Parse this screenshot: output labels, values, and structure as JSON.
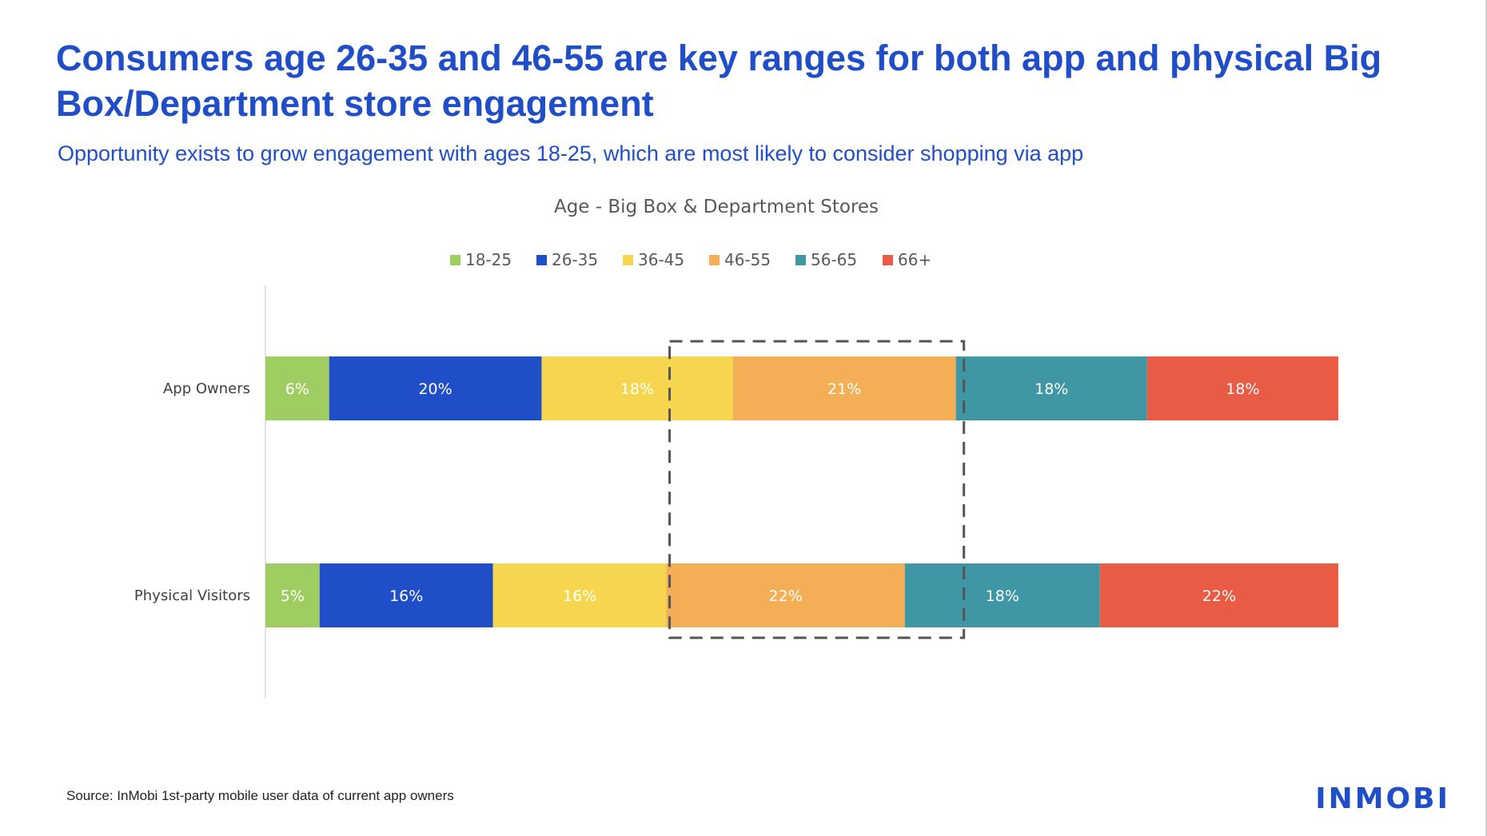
{
  "slide": {
    "title": "Consumers age 26-35 and 46-55 are key ranges for both app and physical Big Box/Department store engagement",
    "subtitle": "Opportunity exists to grow engagement with ages 18-25, which are most likely to consider shopping via app",
    "source": "Source: InMobi 1st-party mobile user data of current app owners",
    "logo_text": "INMOBI"
  },
  "chart_data": {
    "type": "bar",
    "orientation": "horizontal",
    "stacked": true,
    "normalized": true,
    "title": "Age - Big Box & Department Stores",
    "categories": [
      "App Owners",
      "Physical Visitors"
    ],
    "legend_position": "top",
    "grid": false,
    "series": [
      {
        "name": "18-25",
        "color": "#9fcd62",
        "values": [
          6,
          5
        ],
        "labels": [
          "6%",
          "5%"
        ]
      },
      {
        "name": "26-35",
        "color": "#1f4ec8",
        "values": [
          20,
          16
        ],
        "labels": [
          "20%",
          "16%"
        ]
      },
      {
        "name": "36-45",
        "color": "#f7d64f",
        "values": [
          18,
          16
        ],
        "labels": [
          "18%",
          "16%"
        ]
      },
      {
        "name": "46-55",
        "color": "#f4ae56",
        "values": [
          21,
          22
        ],
        "labels": [
          "21%",
          "22%"
        ]
      },
      {
        "name": "56-65",
        "color": "#3f96a4",
        "values": [
          18,
          18
        ],
        "labels": [
          "18%",
          "18%"
        ]
      },
      {
        "name": "66+",
        "color": "#e95b45",
        "values": [
          18,
          22
        ],
        "labels": [
          "18%",
          "22%"
        ]
      }
    ],
    "highlight_series": [
      "46-55"
    ],
    "highlight_style": "dashed-box"
  }
}
